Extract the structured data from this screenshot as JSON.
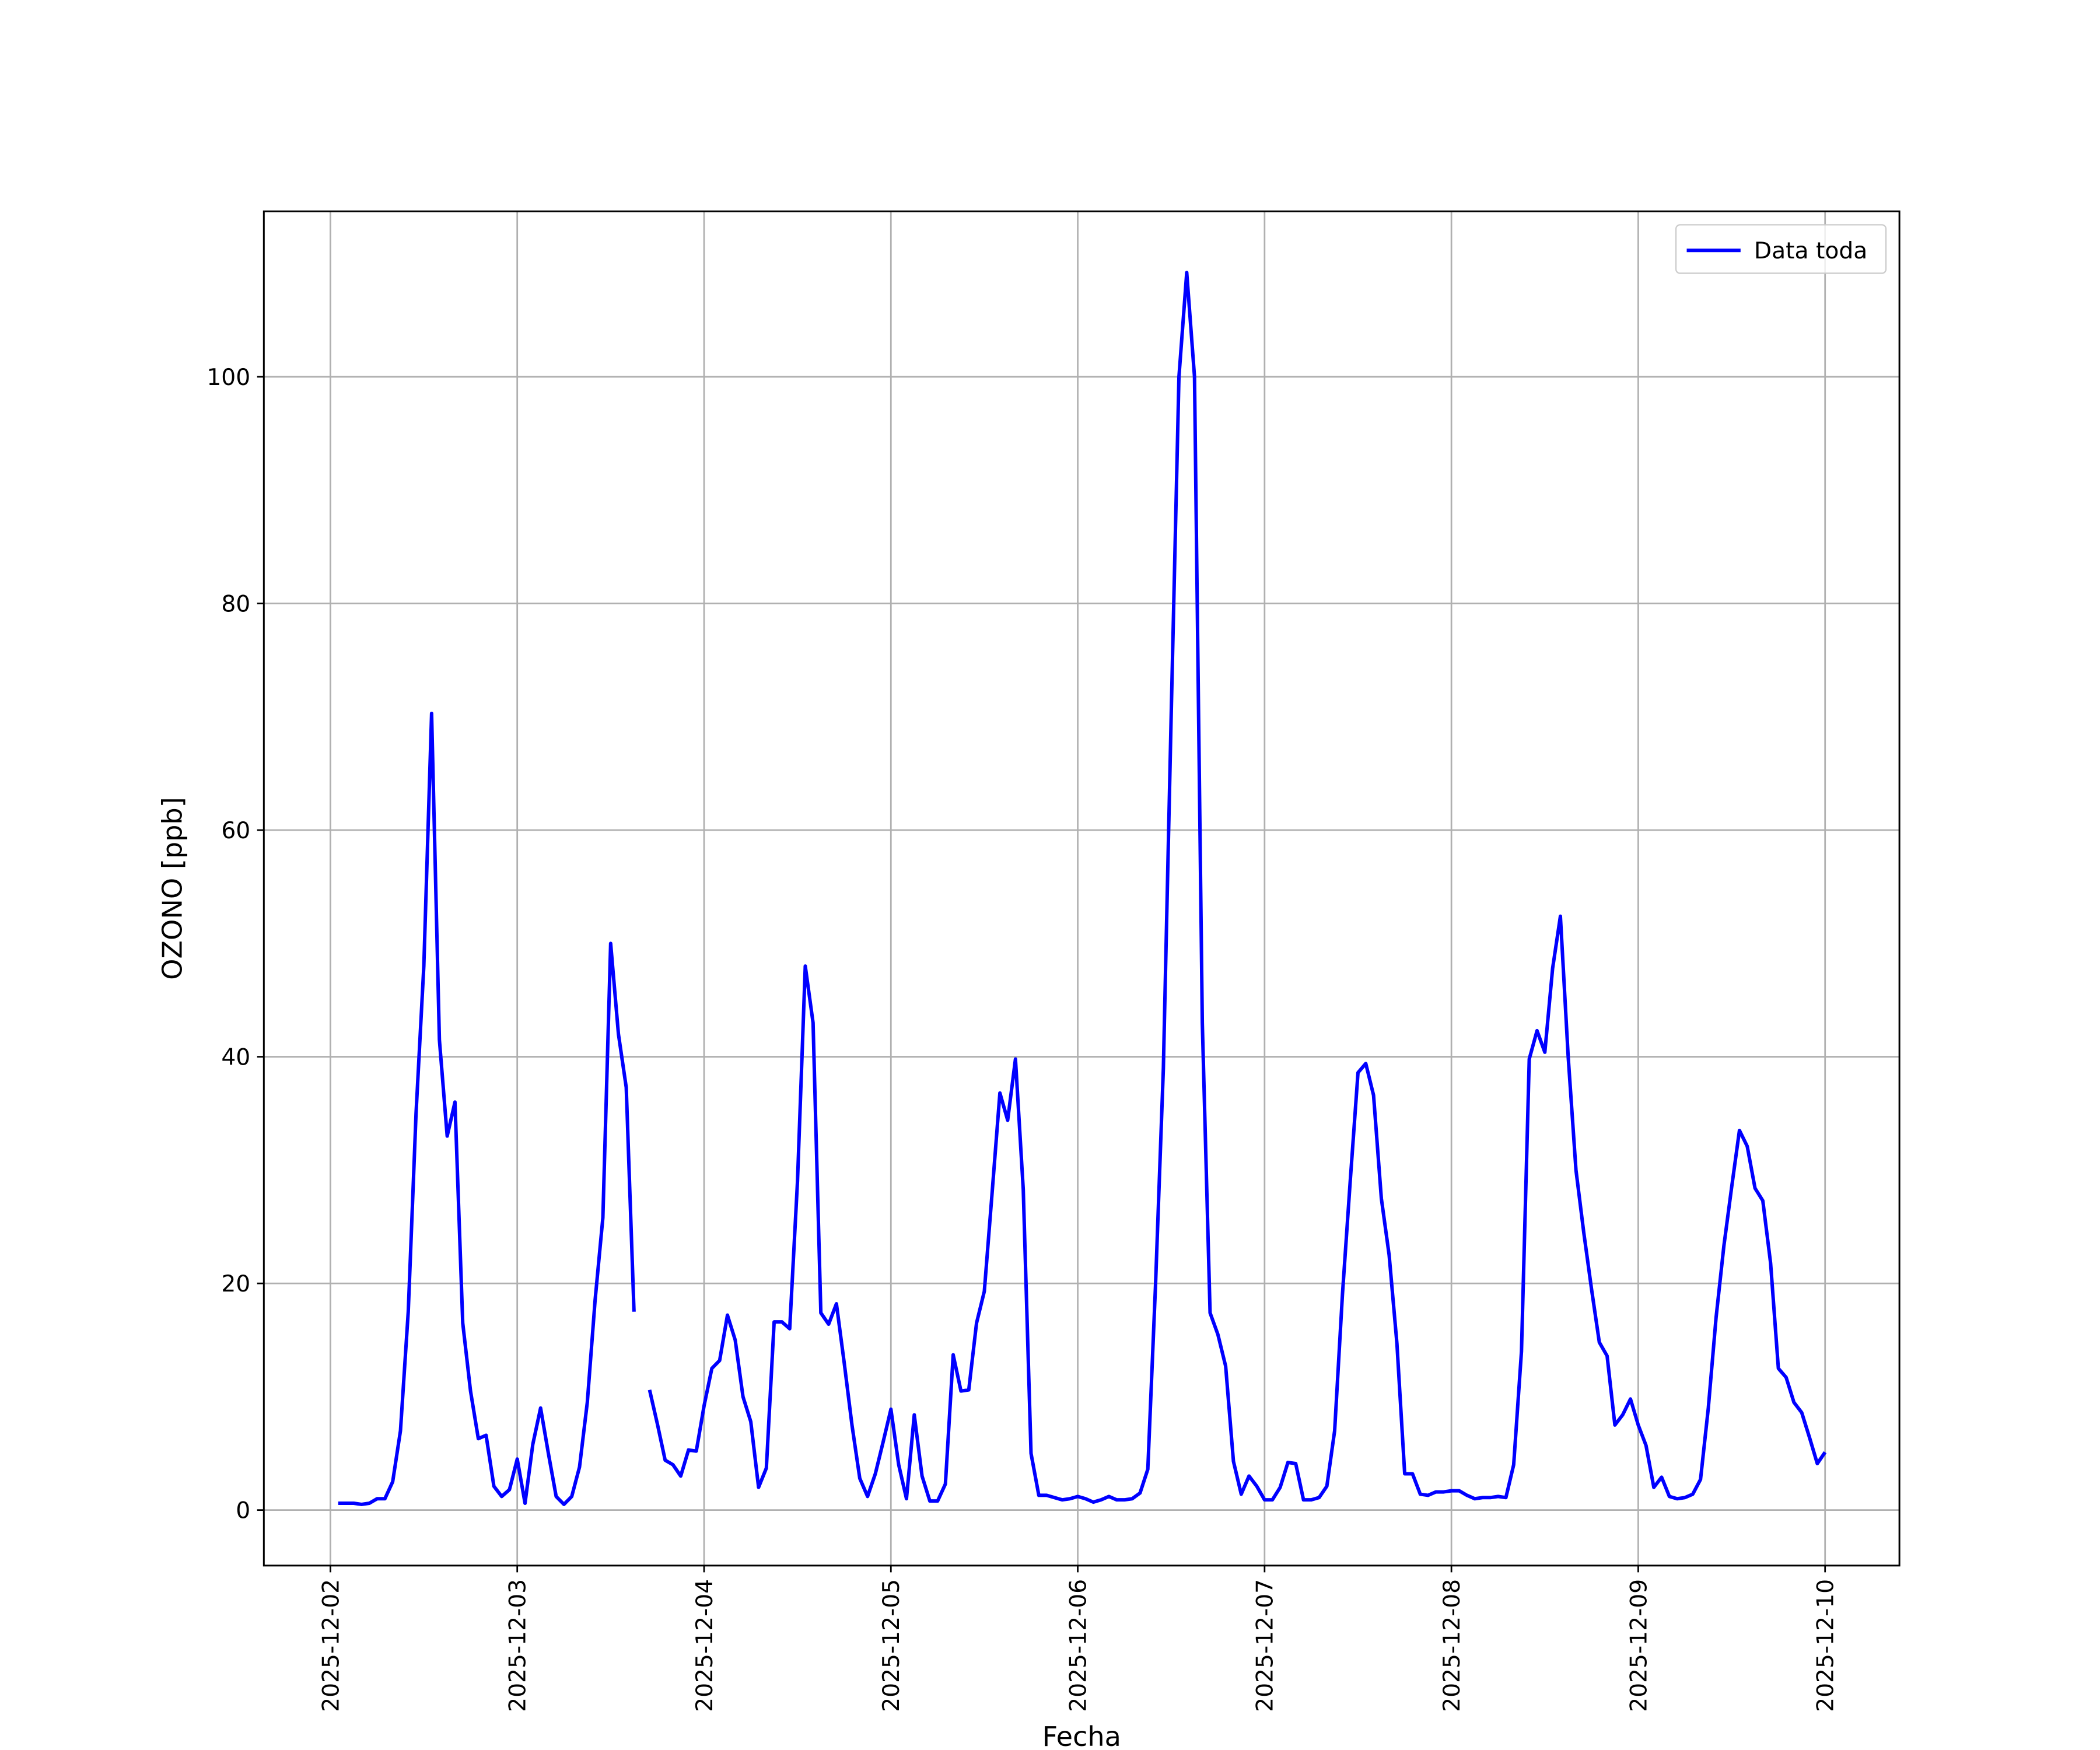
{
  "chart_data": {
    "type": "line",
    "xlabel": "Fecha",
    "ylabel": "OZONO [ppb]",
    "x": [
      "2025-12-02 01:00",
      "2025-12-02 02:00",
      "2025-12-02 03:00",
      "2025-12-02 04:00",
      "2025-12-02 05:00",
      "2025-12-02 06:00",
      "2025-12-02 07:00",
      "2025-12-02 08:00",
      "2025-12-02 09:00",
      "2025-12-02 10:00",
      "2025-12-02 11:00",
      "2025-12-02 12:00",
      "2025-12-02 13:00",
      "2025-12-02 14:00",
      "2025-12-02 15:00",
      "2025-12-02 16:00",
      "2025-12-02 17:00",
      "2025-12-02 18:00",
      "2025-12-02 19:00",
      "2025-12-02 20:00",
      "2025-12-02 21:00",
      "2025-12-02 22:00",
      "2025-12-02 23:00",
      "2025-12-03 00:00",
      "2025-12-03 01:00",
      "2025-12-03 02:00",
      "2025-12-03 03:00",
      "2025-12-03 04:00",
      "2025-12-03 05:00",
      "2025-12-03 06:00",
      "2025-12-03 07:00",
      "2025-12-03 08:00",
      "2025-12-03 09:00",
      "2025-12-03 10:00",
      "2025-12-03 11:00",
      "2025-12-03 12:00",
      "2025-12-03 13:00",
      "2025-12-03 14:00",
      "2025-12-03 15:00",
      "2025-12-03 16:00",
      "2025-12-03 17:00",
      "2025-12-03 18:00",
      "2025-12-03 19:00",
      "2025-12-03 20:00",
      "2025-12-03 21:00",
      "2025-12-03 22:00",
      "2025-12-03 23:00",
      "2025-12-04 00:00",
      "2025-12-04 01:00",
      "2025-12-04 02:00",
      "2025-12-04 03:00",
      "2025-12-04 04:00",
      "2025-12-04 05:00",
      "2025-12-04 06:00",
      "2025-12-04 07:00",
      "2025-12-04 08:00",
      "2025-12-04 09:00",
      "2025-12-04 10:00",
      "2025-12-04 11:00",
      "2025-12-04 12:00",
      "2025-12-04 13:00",
      "2025-12-04 14:00",
      "2025-12-04 15:00",
      "2025-12-04 16:00",
      "2025-12-04 17:00",
      "2025-12-04 18:00",
      "2025-12-04 19:00",
      "2025-12-04 20:00",
      "2025-12-04 21:00",
      "2025-12-04 22:00",
      "2025-12-04 23:00",
      "2025-12-05 00:00",
      "2025-12-05 01:00",
      "2025-12-05 02:00",
      "2025-12-05 03:00",
      "2025-12-05 04:00",
      "2025-12-05 05:00",
      "2025-12-05 06:00",
      "2025-12-05 07:00",
      "2025-12-05 08:00",
      "2025-12-05 09:00",
      "2025-12-05 10:00",
      "2025-12-05 11:00",
      "2025-12-05 12:00",
      "2025-12-05 13:00",
      "2025-12-05 14:00",
      "2025-12-05 15:00",
      "2025-12-05 16:00",
      "2025-12-05 17:00",
      "2025-12-05 18:00",
      "2025-12-05 19:00",
      "2025-12-05 20:00",
      "2025-12-05 21:00",
      "2025-12-05 22:00",
      "2025-12-05 23:00",
      "2025-12-06 00:00",
      "2025-12-06 01:00",
      "2025-12-06 02:00",
      "2025-12-06 03:00",
      "2025-12-06 04:00",
      "2025-12-06 05:00",
      "2025-12-06 06:00",
      "2025-12-06 07:00",
      "2025-12-06 08:00",
      "2025-12-06 09:00",
      "2025-12-06 10:00",
      "2025-12-06 11:00",
      "2025-12-06 12:00",
      "2025-12-06 13:00",
      "2025-12-06 14:00",
      "2025-12-06 15:00",
      "2025-12-06 16:00",
      "2025-12-06 17:00",
      "2025-12-06 18:00",
      "2025-12-06 19:00",
      "2025-12-06 20:00",
      "2025-12-06 21:00",
      "2025-12-06 22:00",
      "2025-12-06 23:00",
      "2025-12-07 00:00",
      "2025-12-07 01:00",
      "2025-12-07 02:00",
      "2025-12-07 03:00",
      "2025-12-07 04:00",
      "2025-12-07 05:00",
      "2025-12-07 06:00",
      "2025-12-07 07:00",
      "2025-12-07 08:00",
      "2025-12-07 09:00",
      "2025-12-07 10:00",
      "2025-12-07 11:00",
      "2025-12-07 12:00",
      "2025-12-07 13:00",
      "2025-12-07 14:00",
      "2025-12-07 15:00",
      "2025-12-07 16:00",
      "2025-12-07 17:00",
      "2025-12-07 18:00",
      "2025-12-07 19:00",
      "2025-12-07 20:00",
      "2025-12-07 21:00",
      "2025-12-07 22:00",
      "2025-12-07 23:00",
      "2025-12-08 00:00",
      "2025-12-08 01:00",
      "2025-12-08 02:00",
      "2025-12-08 03:00",
      "2025-12-08 04:00",
      "2025-12-08 05:00",
      "2025-12-08 06:00",
      "2025-12-08 07:00",
      "2025-12-08 08:00",
      "2025-12-08 09:00",
      "2025-12-08 10:00",
      "2025-12-08 11:00",
      "2025-12-08 12:00",
      "2025-12-08 13:00",
      "2025-12-08 14:00",
      "2025-12-08 15:00",
      "2025-12-08 16:00",
      "2025-12-08 17:00",
      "2025-12-08 18:00",
      "2025-12-08 19:00",
      "2025-12-08 20:00",
      "2025-12-08 21:00",
      "2025-12-08 22:00",
      "2025-12-08 23:00",
      "2025-12-09 00:00",
      "2025-12-09 01:00",
      "2025-12-09 02:00",
      "2025-12-09 03:00",
      "2025-12-09 04:00",
      "2025-12-09 05:00",
      "2025-12-09 06:00",
      "2025-12-09 07:00",
      "2025-12-09 08:00",
      "2025-12-09 09:00",
      "2025-12-09 10:00",
      "2025-12-09 11:00",
      "2025-12-09 12:00",
      "2025-12-09 13:00",
      "2025-12-09 14:00",
      "2025-12-09 15:00",
      "2025-12-09 16:00",
      "2025-12-09 17:00",
      "2025-12-09 18:00",
      "2025-12-09 19:00",
      "2025-12-09 20:00",
      "2025-12-09 21:00",
      "2025-12-09 22:00",
      "2025-12-09 23:00",
      "2025-12-10 00:00"
    ],
    "series": [
      {
        "name": "Data toda",
        "color": "#0000ff",
        "values": [
          0.6,
          0.6,
          0.6,
          0.5,
          0.6,
          1.0,
          1.0,
          2.5,
          7,
          17.5,
          35,
          48,
          70.3,
          41.5,
          33,
          36,
          16.5,
          10.5,
          6.3,
          6.6,
          2.1,
          1.2,
          1.8,
          4.5,
          0.6,
          5.8,
          9,
          5,
          1.2,
          0.5,
          1.2,
          3.8,
          9.5,
          18.5,
          25.8,
          50,
          42,
          37.3,
          17.5,
          null,
          10.6,
          7.6,
          4.4,
          4.0,
          3.0,
          5.3,
          5.2,
          9.2,
          12.5,
          13.2,
          17.2,
          15,
          10,
          7.8,
          2.0,
          3.7,
          16.6,
          16.6,
          16,
          29,
          48,
          43,
          17.4,
          16.4,
          18.2,
          13,
          7.5,
          2.8,
          1.2,
          3.2,
          6,
          8.9,
          4,
          1,
          8.4,
          3,
          0.8,
          0.8,
          2.3,
          13.7,
          10.5,
          10.6,
          16.5,
          19.3,
          28,
          36.8,
          34.4,
          39.8,
          28.3,
          5,
          1.3,
          1.3,
          1.1,
          0.9,
          1.0,
          1.2,
          1.0,
          0.7,
          0.9,
          1.2,
          0.9,
          0.9,
          1.0,
          1.5,
          3.6,
          20,
          39,
          70,
          100,
          109.2,
          100,
          43,
          17.4,
          15.5,
          12.7,
          4.3,
          1.4,
          3.0,
          2.1,
          0.9,
          0.9,
          2,
          4.2,
          4.1,
          0.9,
          0.9,
          1.1,
          2.1,
          7,
          19,
          29,
          38.6,
          39.4,
          36.6,
          27.5,
          22.5,
          14.7,
          3.2,
          3.2,
          1.4,
          1.3,
          1.6,
          1.6,
          1.7,
          1.7,
          1.3,
          1.0,
          1.1,
          1.1,
          1.2,
          1.1,
          4,
          14,
          39.8,
          42.3,
          40.4,
          47.8,
          52.4,
          40,
          30,
          24.5,
          19.5,
          14.8,
          13.6,
          7.5,
          8.4,
          9.8,
          7.5,
          5.7,
          2.0,
          2.9,
          1.2,
          1.0,
          1.1,
          1.4,
          2.7,
          9,
          17,
          23.3,
          28.5,
          33.5,
          32.1,
          28.4,
          27.3,
          21.8,
          12.5,
          11.7,
          9.5,
          8.6,
          6.4,
          4.1,
          5.1
        ]
      }
    ],
    "xlim": [
      "2025-12-01 15:27",
      "2025-12-10 09:33"
    ],
    "xticks": [
      "2025-12-02",
      "2025-12-03",
      "2025-12-04",
      "2025-12-05",
      "2025-12-06",
      "2025-12-07",
      "2025-12-08",
      "2025-12-09",
      "2025-12-10"
    ],
    "ylim": [
      -4.9,
      114.6
    ],
    "yticks": [
      0,
      20,
      40,
      60,
      80,
      100
    ],
    "grid": true,
    "legend": "upper right"
  }
}
